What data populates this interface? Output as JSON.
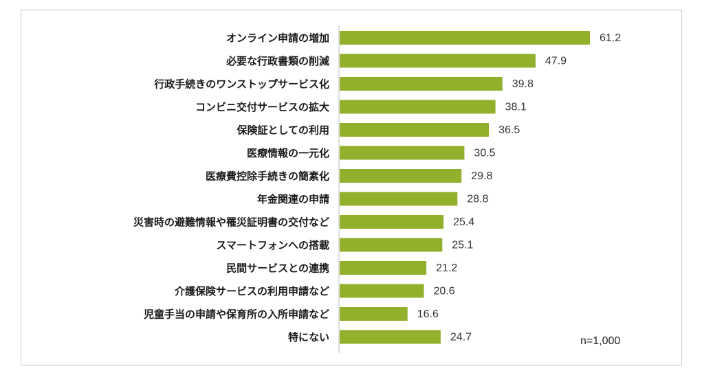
{
  "chart_data": {
    "type": "bar",
    "orientation": "horizontal",
    "categories": [
      "オンライン申請の増加",
      "必要な行政書類の削減",
      "行政手続きのワンストップサービス化",
      "コンビニ交付サービスの拡大",
      "保険証としての利用",
      "医療情報の一元化",
      "医療費控除手続きの簡素化",
      "年金関連の申請",
      "災害時の避難情報や罹災証明書の交付など",
      "スマートフォンへの搭載",
      "民間サービスとの連携",
      "介護保険サービスの利用申請など",
      "児童手当の申請や保育所の入所申請など",
      "特にない"
    ],
    "values": [
      61.2,
      47.9,
      39.8,
      38.1,
      36.5,
      30.5,
      29.8,
      28.8,
      25.4,
      25.1,
      21.2,
      20.6,
      16.6,
      24.7
    ],
    "value_labels": [
      "61.2",
      "47.9",
      "39.8",
      "38.1",
      "36.5",
      "30.5",
      "29.8",
      "28.8",
      "25.4",
      "25.1",
      "21.2",
      "20.6",
      "16.6",
      "24.7"
    ],
    "bar_color": "#92b02c",
    "xlim": [
      0,
      70
    ],
    "grid": false,
    "note": "n=1,000"
  }
}
